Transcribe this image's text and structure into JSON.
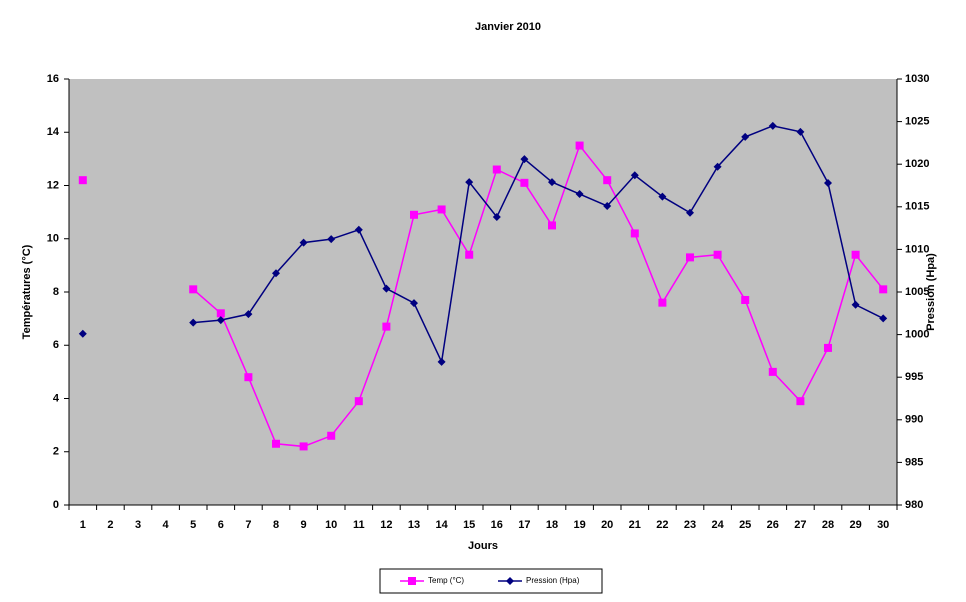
{
  "chart_data": {
    "type": "line",
    "title": "Janvier 2010",
    "xlabel": "Jours",
    "ylabel": "Températures (°C)",
    "y2label": "Pression (Hpa)",
    "categories": [
      1,
      2,
      3,
      4,
      5,
      6,
      7,
      8,
      9,
      10,
      11,
      12,
      13,
      14,
      15,
      16,
      17,
      18,
      19,
      20,
      21,
      22,
      23,
      24,
      25,
      26,
      27,
      28,
      29,
      30
    ],
    "ylim": [
      0,
      16
    ],
    "yticks": [
      0,
      2,
      4,
      6,
      8,
      10,
      12,
      14,
      16
    ],
    "y2lim": [
      980,
      1030
    ],
    "y2ticks": [
      980,
      985,
      990,
      995,
      1000,
      1005,
      1010,
      1015,
      1020,
      1025,
      1030
    ],
    "plot_background": "#c0c0c0",
    "legend": "bottom",
    "series": [
      {
        "name": "Temp (°C)",
        "color": "#ff00ff",
        "marker": "square",
        "values": [
          12.2,
          null,
          null,
          null,
          8.1,
          7.2,
          4.8,
          2.3,
          2.2,
          2.6,
          3.9,
          6.7,
          10.9,
          11.1,
          9.4,
          12.6,
          12.1,
          10.5,
          13.5,
          12.2,
          10.2,
          7.6,
          9.3,
          9.4,
          7.7,
          5.0,
          3.9,
          5.9,
          9.4,
          8.1
        ]
      },
      {
        "name": "Pression (Hpa)",
        "color": "#000080",
        "marker": "diamond",
        "axis": "y2",
        "values": [
          1000.1,
          null,
          null,
          null,
          1001.4,
          1001.7,
          1002.4,
          1007.2,
          1010.8,
          1011.2,
          1012.3,
          1005.4,
          1003.7,
          996.8,
          1017.9,
          1013.8,
          1020.6,
          1017.9,
          1016.5,
          1015.1,
          1018.7,
          1016.2,
          1014.3,
          1019.7,
          1023.2,
          1024.5,
          1023.8,
          1017.8,
          1003.5,
          1001.9
        ]
      }
    ]
  }
}
